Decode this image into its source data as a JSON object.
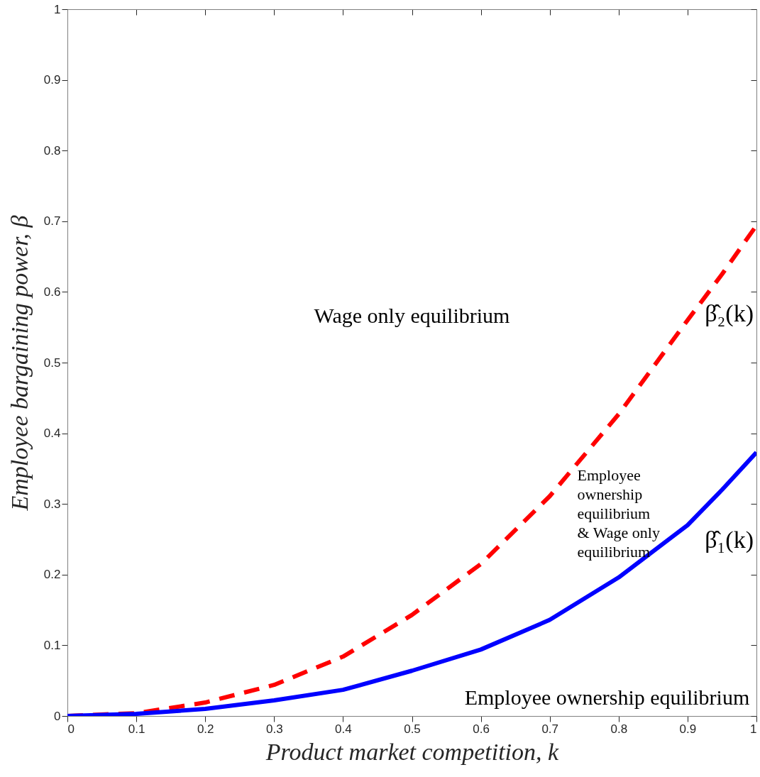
{
  "chart_data": {
    "type": "line",
    "xlabel": "Product market competition, k",
    "ylabel": "Employee bargaining power, β",
    "x": [
      0,
      0.1,
      0.2,
      0.3,
      0.4,
      0.5,
      0.6,
      0.7,
      0.8,
      0.9,
      0.95,
      1
    ],
    "series": [
      {
        "name": "β̂₂(k)",
        "color": "#ff0000",
        "line_style": "dashed",
        "values": [
          0,
          0.004,
          0.019,
          0.044,
          0.084,
          0.143,
          0.215,
          0.311,
          0.427,
          0.56,
          0.625,
          0.694
        ]
      },
      {
        "name": "β̂₁(k)",
        "color": "#0000ff",
        "line_style": "solid",
        "values": [
          0,
          0.003,
          0.01,
          0.022,
          0.037,
          0.064,
          0.094,
          0.136,
          0.196,
          0.27,
          0.32,
          0.373
        ]
      }
    ],
    "xlim": [
      0,
      1
    ],
    "ylim": [
      0,
      1
    ],
    "xticks": [
      0,
      0.1,
      0.2,
      0.3,
      0.4,
      0.5,
      0.6,
      0.7,
      0.8,
      0.9,
      1
    ],
    "yticks": [
      0,
      0.1,
      0.2,
      0.3,
      0.4,
      0.5,
      0.6,
      0.7,
      0.8,
      0.9,
      1
    ],
    "annotations": [
      "Wage only equilibrium",
      "Employee\nownership\nequilibrium\n& Wage only\nequilibrium",
      "Employee ownership equilibrium"
    ],
    "grid": false
  }
}
